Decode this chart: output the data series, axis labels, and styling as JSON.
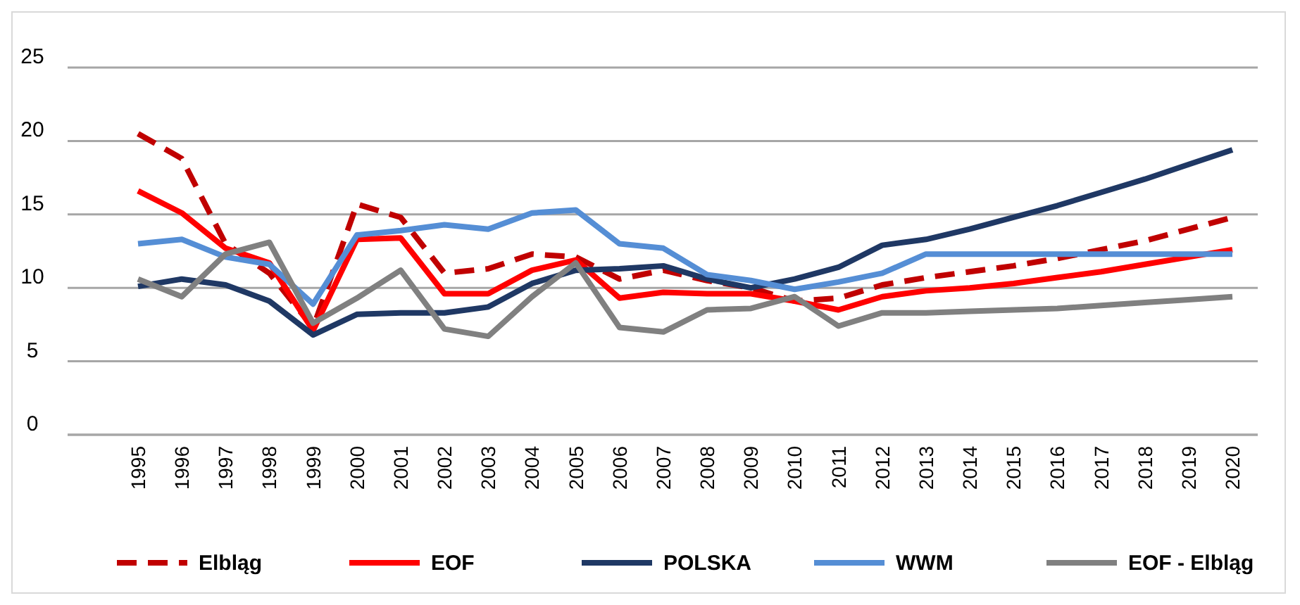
{
  "chart_data": {
    "type": "line",
    "categories": [
      "1995",
      "1996",
      "1997",
      "1998",
      "1999",
      "2000",
      "2001",
      "2002",
      "2003",
      "2004",
      "2005",
      "2006",
      "2007",
      "2008",
      "2009",
      "2010",
      "2011",
      "2012",
      "2013",
      "2014",
      "2015",
      "2016",
      "2017",
      "2018",
      "2019",
      "2020"
    ],
    "ylim": [
      0,
      25
    ],
    "yticks": [
      0,
      5,
      10,
      15,
      20,
      25
    ],
    "grid": "y",
    "legend": "bottom",
    "series": [
      {
        "name": "Elbląg",
        "color": "#c00000",
        "line_style": "dashed",
        "values": [
          20.5,
          18.8,
          13,
          11,
          7.3,
          15.7,
          14.8,
          11,
          11.3,
          12.3,
          12.1,
          10.6,
          11.2,
          10.5,
          10,
          9.1,
          9.3,
          10.2,
          10.7,
          11.1,
          11.5,
          12,
          12.6,
          13.2,
          14,
          14.8
        ]
      },
      {
        "name": "EOF",
        "color": "#ff0000",
        "line_style": "solid",
        "values": [
          16.6,
          15.1,
          12.7,
          11.7,
          7.1,
          13.3,
          13.4,
          9.6,
          9.6,
          11.2,
          11.9,
          9.3,
          9.7,
          9.6,
          9.6,
          9.1,
          8.5,
          9.4,
          9.8,
          10,
          10.3,
          10.7,
          11.1,
          11.6,
          12.1,
          12.6
        ]
      },
      {
        "name": "POLSKA",
        "color": "#1f3864",
        "line_style": "solid",
        "values": [
          10.1,
          10.6,
          10.2,
          9.1,
          6.8,
          8.2,
          8.3,
          8.3,
          8.7,
          10.3,
          11.2,
          11.3,
          11.5,
          10.6,
          10,
          10.6,
          11.4,
          12.9,
          13.3,
          14,
          14.8,
          15.6,
          16.5,
          17.4,
          18.4,
          19.4
        ]
      },
      {
        "name": "WWM",
        "color": "#558ed5",
        "line_style": "solid",
        "values": [
          13,
          13.3,
          12.1,
          11.6,
          8.9,
          13.6,
          13.9,
          14.3,
          14,
          15.1,
          15.3,
          13,
          12.7,
          10.9,
          10.5,
          9.9,
          10.4,
          11,
          12.3,
          12.3,
          12.3,
          12.3,
          12.3,
          12.3,
          12.3,
          12.3
        ]
      },
      {
        "name": "EOF - Elbląg",
        "color": "#808080",
        "line_style": "solid",
        "values": [
          10.6,
          9.4,
          12.3,
          13.1,
          7.6,
          9.3,
          11.2,
          7.2,
          6.7,
          9.4,
          11.7,
          7.3,
          7,
          8.5,
          8.6,
          9.4,
          7.4,
          8.3,
          8.3,
          8.4,
          8.5,
          8.6,
          8.8,
          9,
          9.2,
          9.4
        ]
      }
    ]
  }
}
